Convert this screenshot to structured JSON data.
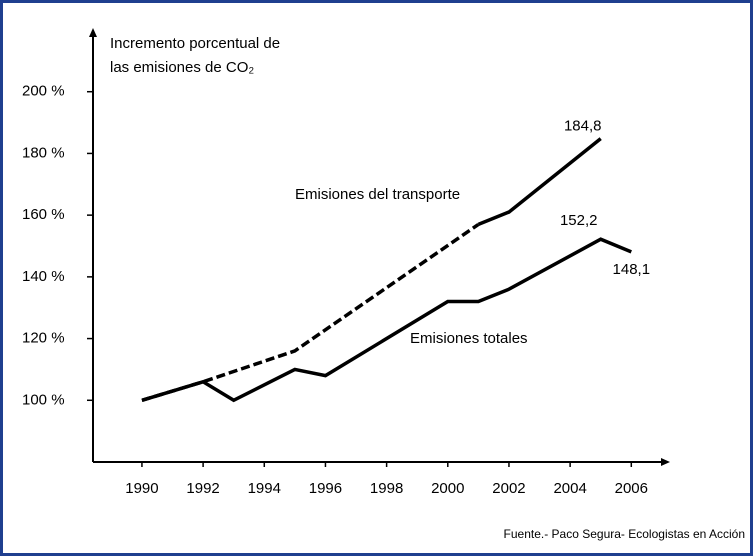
{
  "chart_data": {
    "type": "line",
    "y_label_lines": [
      "Incremento porcentual de",
      "las emisiones de CO₂"
    ],
    "source": "Fuente.- Paco Segura- Ecologistas en Acción",
    "xlim": [
      1988.4,
      2007.2
    ],
    "ylim": [
      80,
      220
    ],
    "xticks": [
      1990,
      1992,
      1994,
      1996,
      1998,
      2000,
      2002,
      2004,
      2006
    ],
    "yticks": [
      {
        "value": 100,
        "label": "100 %"
      },
      {
        "value": 120,
        "label": "120 %"
      },
      {
        "value": 140,
        "label": "140 %"
      },
      {
        "value": 160,
        "label": "160 %"
      },
      {
        "value": 180,
        "label": "180 %"
      },
      {
        "value": 200,
        "label": "200 %"
      }
    ],
    "series": [
      {
        "name": "Emisiones del transporte",
        "color": "#000000",
        "dashed_until_x": 2001,
        "x": [
          1990,
          1992,
          1995,
          2001,
          2002,
          2005
        ],
        "values": [
          100,
          106,
          116,
          157,
          161,
          184.8
        ],
        "value_labels": [
          null,
          null,
          null,
          null,
          null,
          "184,8"
        ]
      },
      {
        "name": "Emisiones totales",
        "color": "#000000",
        "x": [
          1990,
          1992,
          1993,
          1995,
          1996,
          2000,
          2001,
          2002,
          2005,
          2006
        ],
        "values": [
          100,
          106,
          100,
          110,
          108,
          132,
          132,
          136,
          152.2,
          148.1
        ],
        "value_labels": [
          null,
          null,
          null,
          null,
          null,
          null,
          null,
          null,
          "152,2",
          "148,1"
        ]
      }
    ]
  }
}
